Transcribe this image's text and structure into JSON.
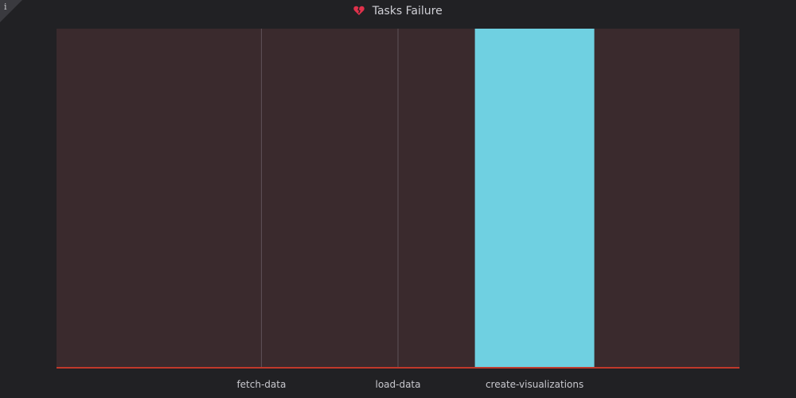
{
  "panel": {
    "title": "Tasks Failure",
    "title_icon": "broken-heart-icon",
    "info_icon": "info-icon",
    "info_glyph": "i"
  },
  "colors": {
    "background": "#212124",
    "plot_background": "#3a2a2d",
    "bar": "#6fd0e1",
    "baseline": "#c0392b",
    "gridline": "#5f5358",
    "heart": "#e0314b"
  },
  "chart_data": {
    "type": "bar",
    "title": "Tasks Failure",
    "categories": [
      "",
      "fetch-data",
      "load-data",
      "create-visualizations",
      ""
    ],
    "values": [
      0,
      0,
      0,
      1,
      0
    ],
    "ylim": [
      0,
      1
    ],
    "xlabel": "",
    "ylabel": "",
    "grid": true
  }
}
